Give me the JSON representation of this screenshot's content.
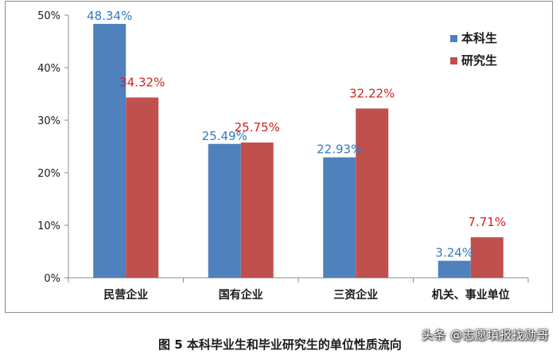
{
  "chart_data": {
    "type": "bar",
    "categories": [
      "民营企业",
      "国有企业",
      "三资企业",
      "机关、事业单位"
    ],
    "series": [
      {
        "name": "本科生",
        "color": "#4f81bd",
        "label_color": "#2e7cc0",
        "values": [
          48.34,
          25.49,
          22.93,
          3.24
        ],
        "labels": [
          "48.34%",
          "25.49%",
          "22.93%",
          "3.24%"
        ]
      },
      {
        "name": "研究生",
        "color": "#c0504d",
        "label_color": "#d42020",
        "values": [
          34.32,
          25.75,
          32.22,
          7.71
        ],
        "labels": [
          "34.32%",
          "25.75%",
          "32.22%",
          "7.71%"
        ]
      }
    ],
    "ylim": [
      0,
      50
    ],
    "yticks": [
      "0%",
      "10%",
      "20%",
      "30%",
      "40%",
      "50%"
    ],
    "ytick_values": [
      0,
      10,
      20,
      30,
      40,
      50
    ],
    "grid": false,
    "legend_position": "top-right"
  },
  "caption": "图 5   本科毕业生和毕业研究生的单位性质流向",
  "watermark": "头条 @志愿填报找勋哥"
}
